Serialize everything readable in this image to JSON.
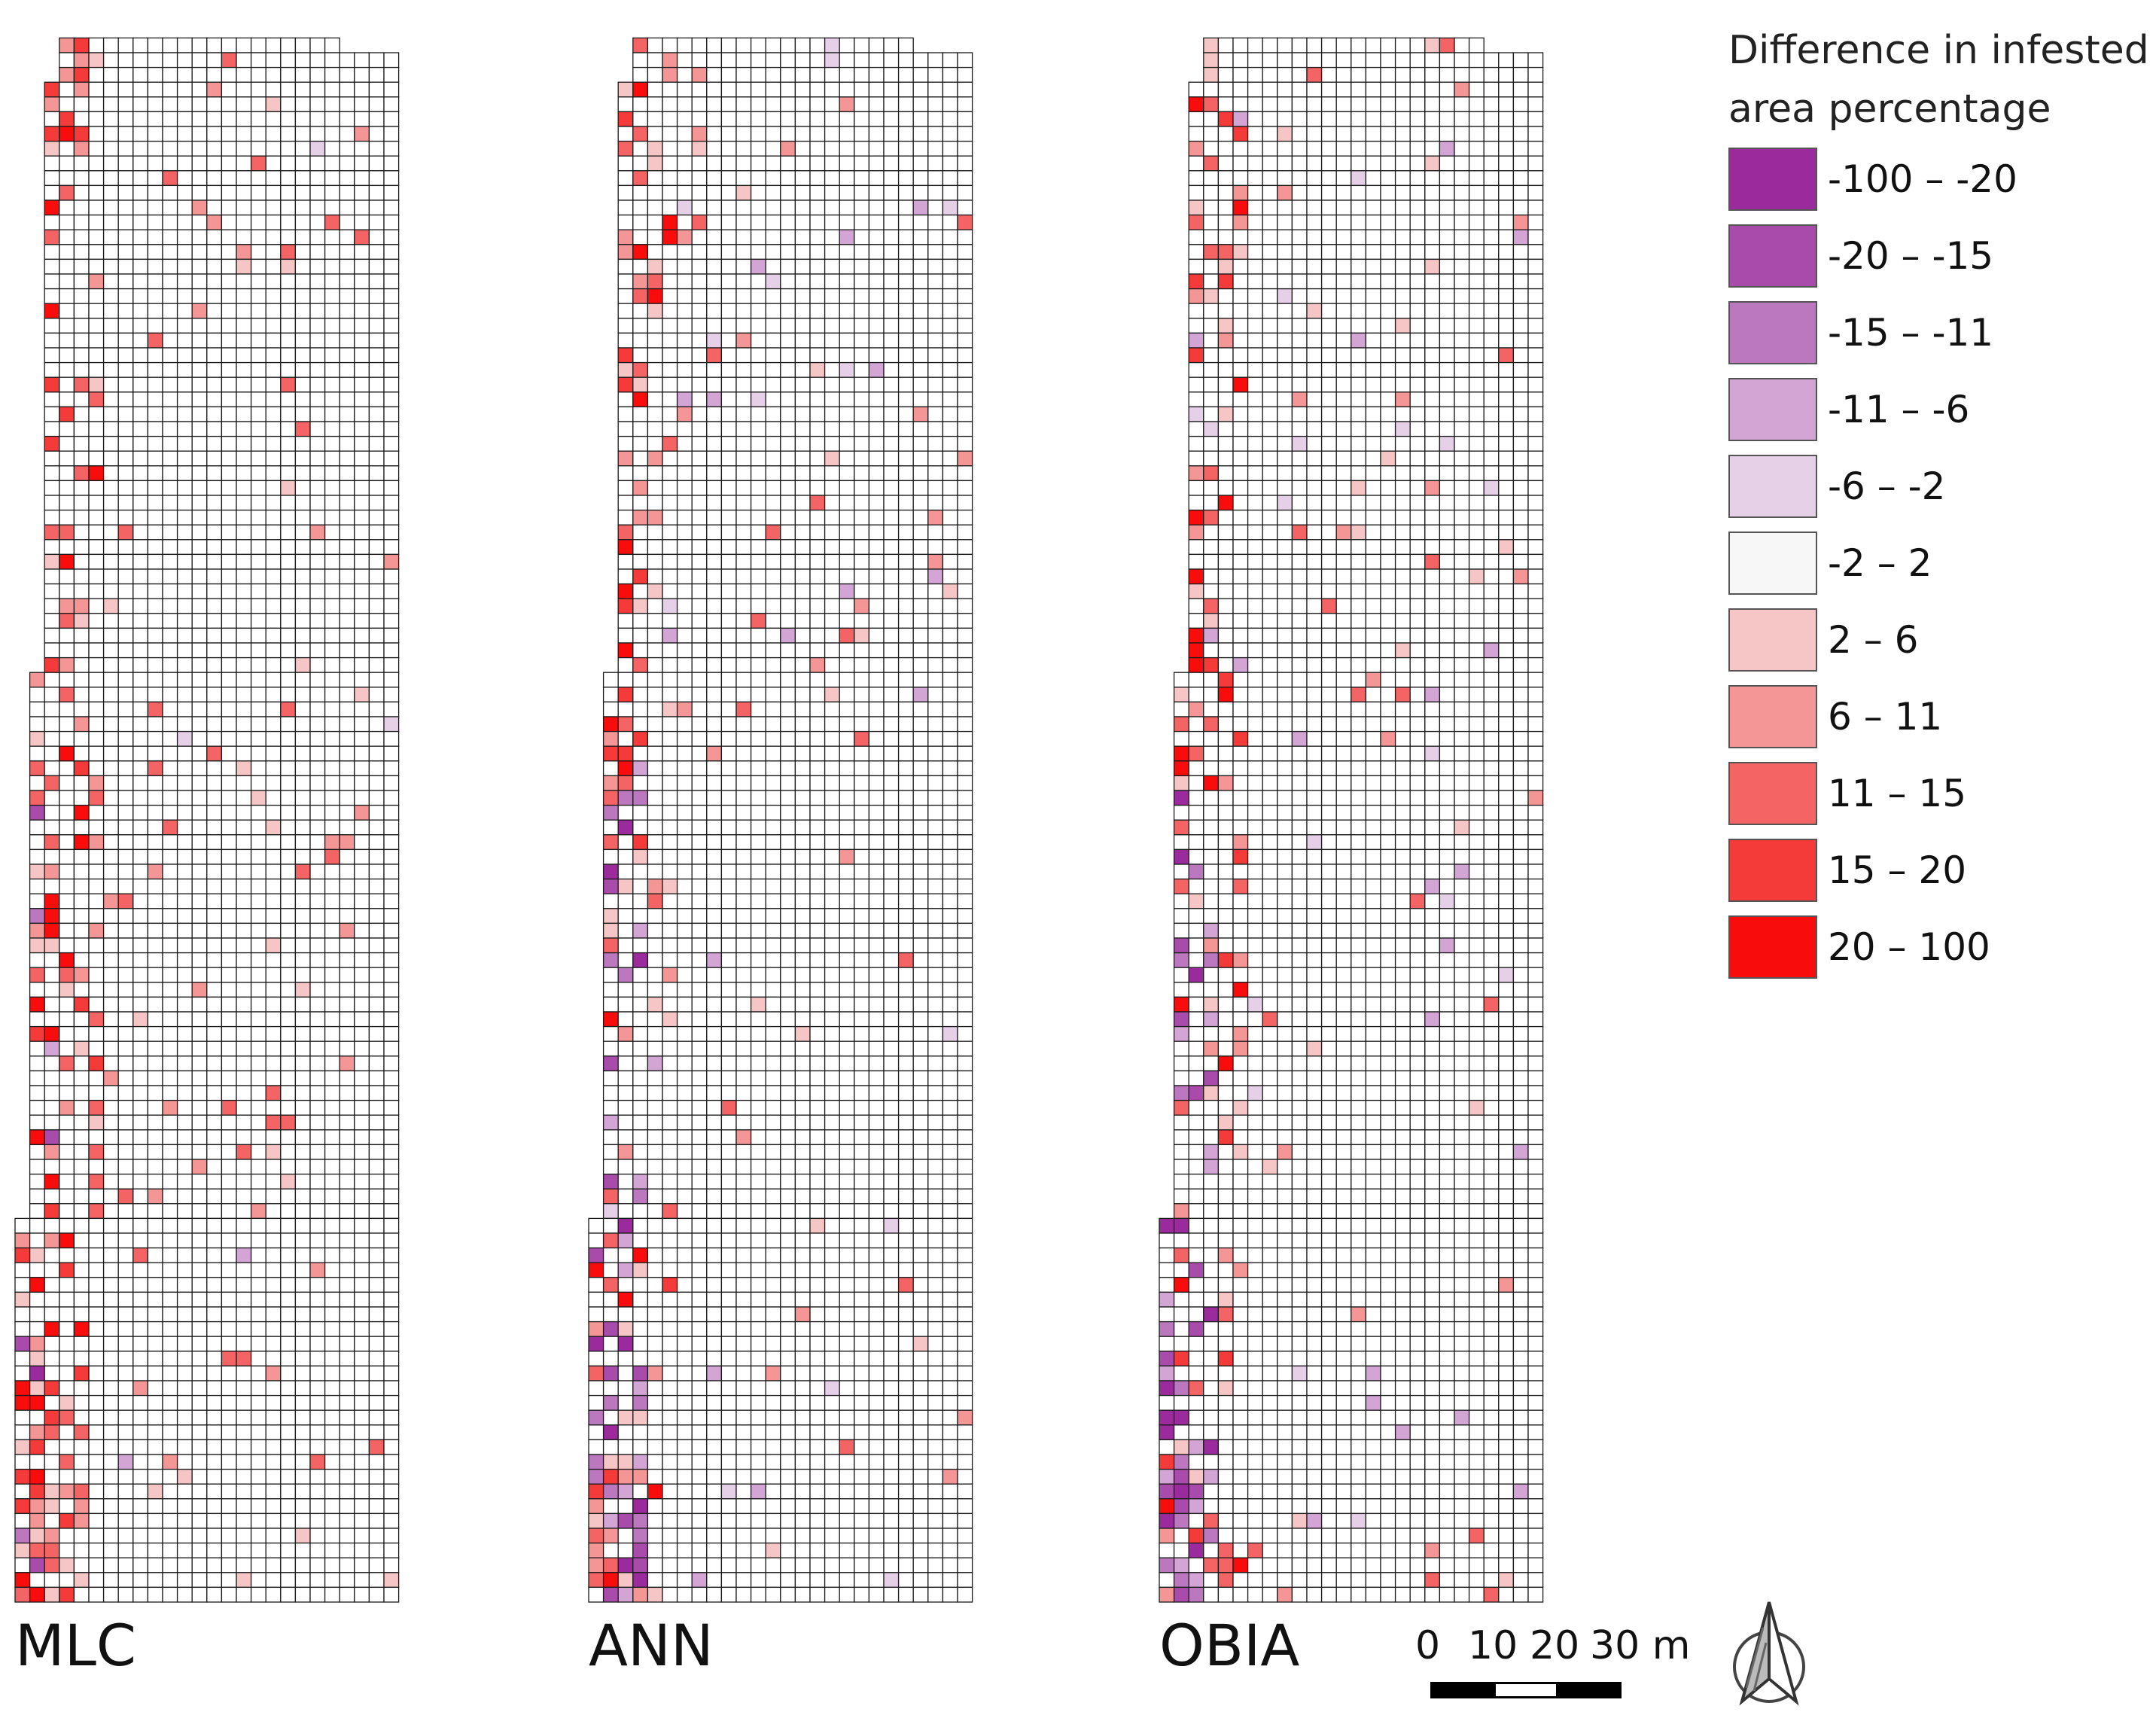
{
  "maps": [
    {
      "id": "mlc",
      "label": "MLC",
      "seed": 11,
      "purple_factor": 0.15
    },
    {
      "id": "ann",
      "label": "ANN",
      "seed": 29,
      "purple_factor": 0.75
    },
    {
      "id": "obia",
      "label": "OBIA",
      "seed": 47,
      "purple_factor": 1.0
    }
  ],
  "legend": {
    "title": "Difference in infested area percentage",
    "classes": [
      {
        "label": "-100 – -20",
        "color": "#9b2a9c"
      },
      {
        "label": "-20 – -15",
        "color": "#a84bab"
      },
      {
        "label": "-15 – -11",
        "color": "#bb78bf"
      },
      {
        "label": "-11 – -6",
        "color": "#d2a5d5"
      },
      {
        "label": "-6 – -2",
        "color": "#e6d0e8"
      },
      {
        "label": "-2 – 2",
        "color": "#f7f7f7"
      },
      {
        "label": "2 – 6",
        "color": "#f6c5c5"
      },
      {
        "label": "6 – 11",
        "color": "#f59696"
      },
      {
        "label": "11 – 15",
        "color": "#f46464"
      },
      {
        "label": "15 – 20",
        "color": "#f53a3a"
      },
      {
        "label": "20 – 100",
        "color": "#f80c0c"
      }
    ]
  },
  "scale_bar": {
    "ticks": [
      "0",
      "10",
      "20",
      "30 m"
    ]
  },
  "colors": {
    "grid_line": "#1a1a1a",
    "background": "#ffffff"
  }
}
